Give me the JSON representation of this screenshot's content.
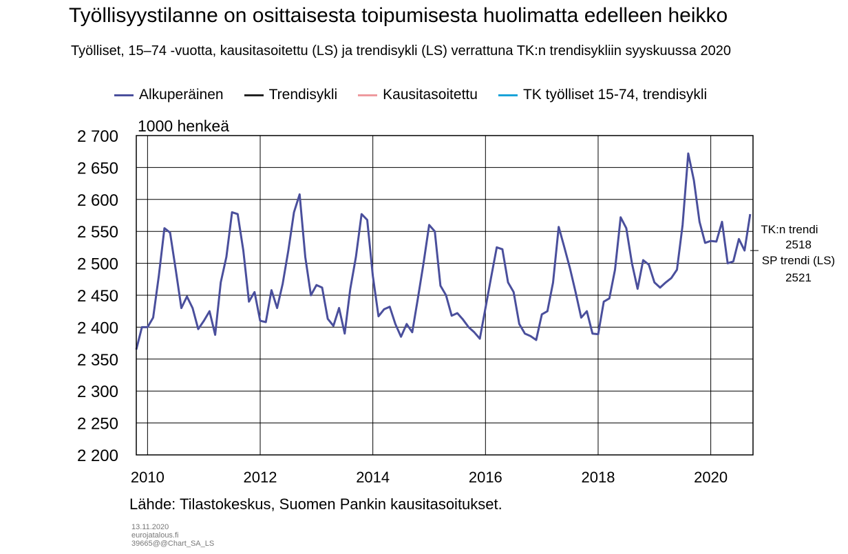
{
  "title": "Työllisyystilanne on osittaisesta toipumisesta huolimatta edelleen heikko",
  "subtitle": "Työlliset, 15–74 -vuotta, kausitasoitettu (LS) ja trendisykli (LS) verrattuna TK:n trendisykliin syyskuussa 2020",
  "unit_label": "1000 henkeä",
  "source": "Lähde: Tilastokeskus, Suomen Pankin kausitasoitukset.",
  "footer": {
    "date": "13.11.2020",
    "site": "eurojatalous.fi",
    "code": "39665@@Chart_SA_LS"
  },
  "colors": {
    "alkuperainen": "#4a4f9c",
    "trendisykli": "#222222",
    "kausitasoitettu": "#ee9a9e",
    "tk_trend": "#19a3d8"
  },
  "annotations": {
    "tk_label": "TK:n trendi",
    "tk_value": "2518",
    "sp_label": "SP trendi (LS)",
    "sp_value": "2521"
  },
  "chart_data": {
    "type": "line",
    "title": "Työllisyystilanne on osittaisesta toipumisesta huolimatta edelleen heikko",
    "ylabel": "1000 henkeä",
    "ylim": [
      2200,
      2700
    ],
    "yticks": [
      2200,
      2250,
      2300,
      2350,
      2400,
      2450,
      2500,
      2550,
      2600,
      2650,
      2700
    ],
    "ytick_labels": [
      "2 200",
      "2 250",
      "2 300",
      "2 350",
      "2 400",
      "2 450",
      "2 500",
      "2 550",
      "2 600",
      "2 650",
      "2 700"
    ],
    "xlim": [
      2009.8,
      2020.75
    ],
    "xticks": [
      2010,
      2012,
      2014,
      2016,
      2018,
      2020
    ],
    "xtick_labels": [
      "2010",
      "2012",
      "2014",
      "2016",
      "2018",
      "2020"
    ],
    "grid": true,
    "legend_position": "top",
    "series": [
      {
        "name": "Alkuperäinen",
        "color": "#4a4f9c",
        "points": [
          [
            2009.8,
            2365
          ],
          [
            2009.9,
            2400
          ],
          [
            2010.0,
            2400
          ],
          [
            2010.1,
            2415
          ],
          [
            2010.2,
            2480
          ],
          [
            2010.3,
            2555
          ],
          [
            2010.4,
            2548
          ],
          [
            2010.5,
            2490
          ],
          [
            2010.6,
            2430
          ],
          [
            2010.7,
            2448
          ],
          [
            2010.8,
            2430
          ],
          [
            2010.9,
            2397
          ],
          [
            2011.0,
            2410
          ],
          [
            2011.1,
            2425
          ],
          [
            2011.2,
            2388
          ],
          [
            2011.3,
            2470
          ],
          [
            2011.4,
            2510
          ],
          [
            2011.5,
            2580
          ],
          [
            2011.6,
            2577
          ],
          [
            2011.7,
            2520
          ],
          [
            2011.8,
            2440
          ],
          [
            2011.9,
            2455
          ],
          [
            2012.0,
            2410
          ],
          [
            2012.1,
            2408
          ],
          [
            2012.2,
            2458
          ],
          [
            2012.3,
            2430
          ],
          [
            2012.4,
            2468
          ],
          [
            2012.5,
            2520
          ],
          [
            2012.6,
            2580
          ],
          [
            2012.7,
            2608
          ],
          [
            2012.8,
            2510
          ],
          [
            2012.9,
            2450
          ],
          [
            2013.0,
            2466
          ],
          [
            2013.1,
            2462
          ],
          [
            2013.2,
            2413
          ],
          [
            2013.3,
            2402
          ],
          [
            2013.4,
            2430
          ],
          [
            2013.5,
            2390
          ],
          [
            2013.6,
            2460
          ],
          [
            2013.7,
            2510
          ],
          [
            2013.8,
            2577
          ],
          [
            2013.9,
            2568
          ],
          [
            2014.0,
            2480
          ],
          [
            2014.1,
            2417
          ],
          [
            2014.2,
            2428
          ],
          [
            2014.3,
            2432
          ],
          [
            2014.4,
            2405
          ],
          [
            2014.5,
            2385
          ],
          [
            2014.6,
            2405
          ],
          [
            2014.7,
            2392
          ],
          [
            2014.8,
            2445
          ],
          [
            2014.9,
            2500
          ],
          [
            2015.0,
            2560
          ],
          [
            2015.1,
            2550
          ],
          [
            2015.2,
            2465
          ],
          [
            2015.3,
            2450
          ],
          [
            2015.4,
            2418
          ],
          [
            2015.5,
            2422
          ],
          [
            2015.6,
            2412
          ],
          [
            2015.7,
            2400
          ],
          [
            2015.8,
            2392
          ],
          [
            2015.9,
            2382
          ],
          [
            2016.0,
            2430
          ],
          [
            2016.1,
            2478
          ],
          [
            2016.2,
            2525
          ],
          [
            2016.3,
            2522
          ],
          [
            2016.4,
            2470
          ],
          [
            2016.5,
            2455
          ],
          [
            2016.6,
            2405
          ],
          [
            2016.7,
            2390
          ],
          [
            2016.8,
            2386
          ],
          [
            2016.9,
            2380
          ],
          [
            2017.0,
            2420
          ],
          [
            2017.1,
            2425
          ],
          [
            2017.2,
            2470
          ],
          [
            2017.3,
            2557
          ],
          [
            2017.4,
            2525
          ],
          [
            2017.5,
            2492
          ],
          [
            2017.6,
            2455
          ],
          [
            2017.7,
            2415
          ],
          [
            2017.8,
            2425
          ],
          [
            2017.9,
            2390
          ],
          [
            2018.0,
            2389
          ],
          [
            2018.1,
            2440
          ],
          [
            2018.2,
            2445
          ],
          [
            2018.3,
            2490
          ],
          [
            2018.4,
            2572
          ],
          [
            2018.5,
            2555
          ],
          [
            2018.6,
            2500
          ],
          [
            2018.7,
            2460
          ],
          [
            2018.8,
            2505
          ],
          [
            2018.9,
            2498
          ],
          [
            2019.0,
            2470
          ],
          [
            2019.1,
            2462
          ],
          [
            2019.2,
            2470
          ],
          [
            2019.3,
            2477
          ],
          [
            2019.4,
            2490
          ],
          [
            2019.5,
            2560
          ],
          [
            2019.6,
            2672
          ],
          [
            2019.7,
            2630
          ],
          [
            2019.8,
            2565
          ],
          [
            2019.9,
            2532
          ],
          [
            2020.0,
            2535
          ],
          [
            2020.1,
            2534
          ],
          [
            2020.2,
            2565
          ],
          [
            2020.3,
            2500
          ],
          [
            2020.4,
            2503
          ],
          [
            2020.5,
            2538
          ],
          [
            2020.6,
            2520
          ],
          [
            2020.7,
            2577
          ]
        ]
      },
      {
        "name": "Trendisykli",
        "color": "#222222",
        "points": []
      },
      {
        "name": "Kausitasoitettu",
        "color": "#ee9a9e",
        "points": []
      },
      {
        "name": "TK  työlliset 15-74, trendisykli",
        "color": "#19a3d8",
        "points": []
      }
    ]
  }
}
